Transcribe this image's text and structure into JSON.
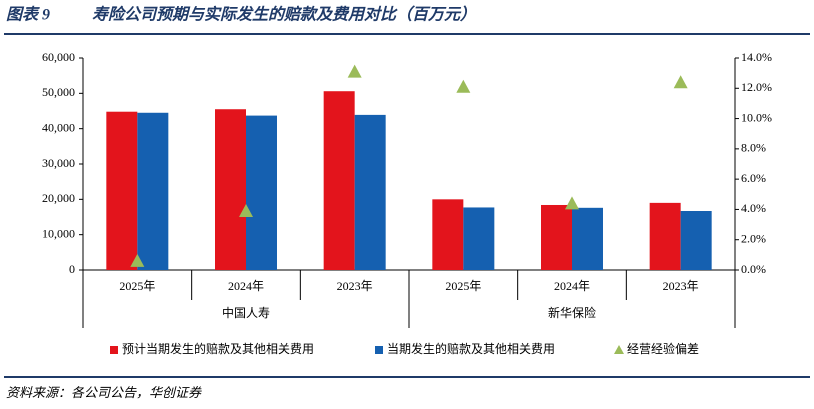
{
  "chart_data": {
    "type": "bar-line",
    "figure_label": "图表 9",
    "title": "寿险公司预期与实际发生的赔款及费用对比（百万元）",
    "categories": [
      "2025年",
      "2024年",
      "2023年",
      "2025年",
      "2024年",
      "2023年"
    ],
    "groups": [
      {
        "name": "中国人寿",
        "span": 3
      },
      {
        "name": "新华保险",
        "span": 3
      }
    ],
    "series": [
      {
        "name": "预计当期发生的赔款及其他相关费用",
        "color": "#e3141c",
        "kind": "bar",
        "values": [
          44800,
          45500,
          50600,
          20000,
          18400,
          19000
        ]
      },
      {
        "name": "当期发生的赔款及其他相关费用",
        "color": "#1560b0",
        "kind": "bar",
        "values": [
          44500,
          43700,
          43900,
          17700,
          17600,
          16700
        ]
      },
      {
        "name": "经营经验偏差",
        "color": "#9bbb59",
        "kind": "triangle",
        "axis": "y2",
        "values": [
          0.6,
          3.9,
          13.1,
          12.1,
          4.4,
          12.4
        ]
      }
    ],
    "ylim": [
      0,
      60000
    ],
    "yticks": [
      0,
      {
        "value": 10000,
        "label": "10,000"
      },
      {
        "value": 20000,
        "label": "20,000"
      },
      {
        "value": 30000,
        "label": "30,000"
      },
      {
        "value": 40000,
        "label": "40,000"
      },
      {
        "value": 50000,
        "label": "50,000"
      },
      {
        "value": 60000,
        "label": "60,000"
      }
    ],
    "y2lim": [
      0,
      14
    ],
    "y2ticks": [
      {
        "value": 0,
        "label": "0.0%"
      },
      {
        "value": 2,
        "label": "2.0%"
      },
      {
        "value": 4,
        "label": "4.0%"
      },
      {
        "value": 6,
        "label": "6.0%"
      },
      {
        "value": 8,
        "label": "8.0%"
      },
      {
        "value": 10,
        "label": "10.0%"
      },
      {
        "value": 12,
        "label": "12.0%"
      },
      {
        "value": 14,
        "label": "14.0%"
      }
    ],
    "source": "资料来源：各公司公告，华创证券"
  }
}
